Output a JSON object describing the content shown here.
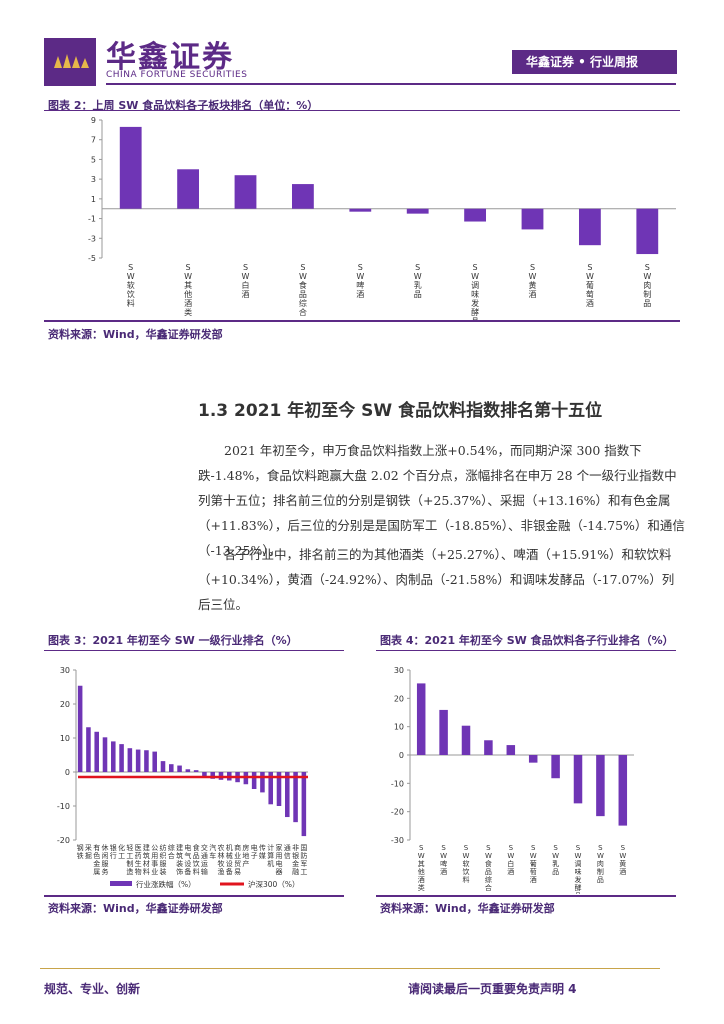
{
  "header": {
    "logo_cn": "华鑫证券",
    "logo_en": "CHINA FORTUNE SECURITIES",
    "report_tag": "华鑫证券 • 行业周报"
  },
  "figure2": {
    "title": "图表 2：上周 SW 食品饮料各子板块排名（单位：%）",
    "source": "资料来源：Wind，华鑫证券研发部"
  },
  "section": {
    "title": "1.3 2021 年初至今 SW 食品饮料指数排名第十五位",
    "para1": "2021 年初至今，申万食品饮料指数上涨+0.54%，而同期沪深 300 指数下跌-1.48%，食品饮料跑赢大盘 2.02 个百分点，涨幅排名在申万 28 个一级行业指数中列第十五位；排名前三位的分别是钢铁（+25.37%）、采掘（+13.16%）和有色金属（+11.83%），后三位的分别是是国防军工（-18.85%）、非银金融（-14.75%）和通信（-13.25%）。",
    "para2": "各子行业中，排名前三的为其他酒类（+25.27%）、啤酒（+15.91%）和软饮料（+10.34%），黄酒（-24.92%）、肉制品（-21.58%）和调味发酵品（-17.07%）列后三位。"
  },
  "figure3": {
    "title": "图表 3：2021 年初至今 SW 一级行业排名（%）",
    "source": "资料来源：Wind，华鑫证券研发部"
  },
  "figure4": {
    "title": "图表 4：2021 年初至今 SW 食品饮料各子行业排名（%）",
    "source": "资料来源：Wind，华鑫证券研发部"
  },
  "footer": {
    "left": "规范、专业、创新",
    "right": "请阅读最后一页重要免责声明 4"
  },
  "chart_data": [
    {
      "id": "fig2",
      "type": "bar",
      "categories": [
        "SW软饮料",
        "SW其他酒类",
        "SW白酒",
        "SW食品综合",
        "SW啤酒",
        "SW乳品",
        "SW调味发酵品",
        "SW黄酒",
        "SW葡萄酒",
        "SW肉制品"
      ],
      "values": [
        8.3,
        4.0,
        3.4,
        2.5,
        -0.3,
        -0.5,
        -1.3,
        -2.1,
        -3.7,
        -4.6
      ],
      "ylim": [
        -5,
        9
      ],
      "yticks": [
        -5,
        -3,
        -1,
        1,
        3,
        5,
        7,
        9
      ],
      "color": "#6f35b5"
    },
    {
      "id": "fig3",
      "type": "bar",
      "categories": [
        "钢铁",
        "采掘",
        "有色金属",
        "休闲服务",
        "银行",
        "化工",
        "轻工制造",
        "医药生物",
        "建筑材料",
        "公用事业",
        "纺织服装",
        "综合",
        "建筑装饰",
        "电气设备",
        "食品饮料",
        "交通运输",
        "汽车",
        "农林牧渔",
        "机械设备",
        "商业贸易",
        "房地产",
        "电子",
        "传媒",
        "计算机",
        "家用电器",
        "通信",
        "非银金融",
        "国防军工"
      ],
      "values": [
        25.37,
        13.16,
        11.83,
        10.2,
        9.0,
        8.2,
        7.0,
        6.6,
        6.4,
        6.0,
        3.2,
        2.3,
        1.9,
        0.8,
        0.54,
        -1.5,
        -2.0,
        -2.3,
        -2.5,
        -3.0,
        -3.6,
        -5.0,
        -6.0,
        -9.5,
        -10.0,
        -13.25,
        -14.75,
        -18.85
      ],
      "benchmark": {
        "name": "沪深300",
        "value": -1.48
      },
      "legend": [
        "行业涨跌幅（%）",
        "沪深300（%）"
      ],
      "ylim": [
        -20,
        30
      ],
      "yticks": [
        -20,
        -10,
        0,
        10,
        20,
        30
      ],
      "color": "#6f35b5",
      "benchmark_color": "#e0141e"
    },
    {
      "id": "fig4",
      "type": "bar",
      "categories": [
        "SW其他酒类",
        "SW啤酒",
        "SW软饮料",
        "SW食品综合",
        "SW白酒",
        "SW葡萄酒",
        "SW乳品",
        "SW调味发酵品",
        "SW肉制品",
        "SW黄酒"
      ],
      "values": [
        25.27,
        15.91,
        10.34,
        5.2,
        3.5,
        -2.7,
        -8.2,
        -17.07,
        -21.58,
        -24.92
      ],
      "ylim": [
        -30,
        30
      ],
      "yticks": [
        -30,
        -20,
        -10,
        0,
        10,
        20,
        30
      ],
      "color": "#6f35b5"
    }
  ]
}
